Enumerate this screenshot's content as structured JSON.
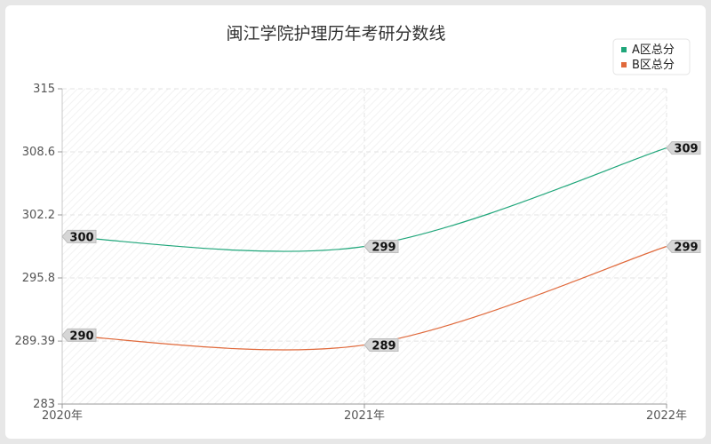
{
  "chart_data": {
    "type": "line",
    "title": "闽江学院护理历年考研分数线",
    "xlabel": "",
    "ylabel": "",
    "categories": [
      "2020年",
      "2021年",
      "2022年"
    ],
    "ylim": [
      283,
      315
    ],
    "yticks": [
      "283",
      "289.39",
      "295.8",
      "302.2",
      "308.6",
      "315"
    ],
    "grid": true,
    "legend_position": "top-right",
    "series": [
      {
        "name": "A区总分",
        "values": [
          300,
          299,
          309
        ],
        "labels": [
          "300",
          "299",
          "309"
        ],
        "color": "#1fa67a"
      },
      {
        "name": "B区总分",
        "values": [
          290,
          289,
          299
        ],
        "labels": [
          "290",
          "289",
          "299"
        ],
        "color": "#e0693b"
      }
    ]
  }
}
